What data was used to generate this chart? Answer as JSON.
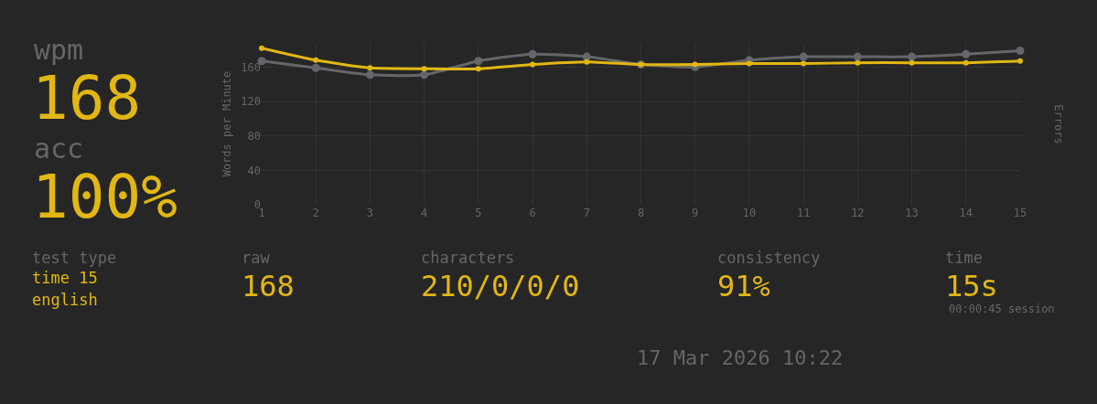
{
  "chart_data": {
    "type": "line",
    "ylabel": "Words per Minute",
    "y2label": "Errors",
    "x": [
      1,
      2,
      3,
      4,
      5,
      6,
      7,
      8,
      9,
      10,
      11,
      12,
      13,
      14,
      15
    ],
    "series": [
      {
        "color": "#646669",
        "values": [
          167,
          159,
          151,
          151,
          167,
          175,
          172,
          163,
          160,
          168,
          172,
          172,
          172,
          175,
          179
        ]
      },
      {
        "color": "#e2b714",
        "values": [
          182,
          168,
          159,
          158,
          158,
          163,
          166,
          163,
          163,
          164,
          164,
          165,
          165,
          165,
          167
        ]
      }
    ],
    "xlim": [
      1,
      15
    ],
    "xticks": [
      1,
      2,
      3,
      4,
      5,
      6,
      7,
      8,
      9,
      10,
      11,
      12,
      13,
      14,
      15
    ],
    "ylim": [
      0,
      188
    ],
    "yticks": [
      0,
      40,
      80,
      120,
      160
    ],
    "grid": true,
    "marker": "circle",
    "line_style": "solid",
    "annotations": [
      "wpm",
      "168",
      "acc",
      "100%",
      "test type",
      "time 15",
      "english",
      "raw",
      "168",
      "characters",
      "210/0/0/0",
      "consistency",
      "91%",
      "time",
      "15s",
      "00:00:45 session",
      "17 Mar 2026 10:22"
    ]
  }
}
